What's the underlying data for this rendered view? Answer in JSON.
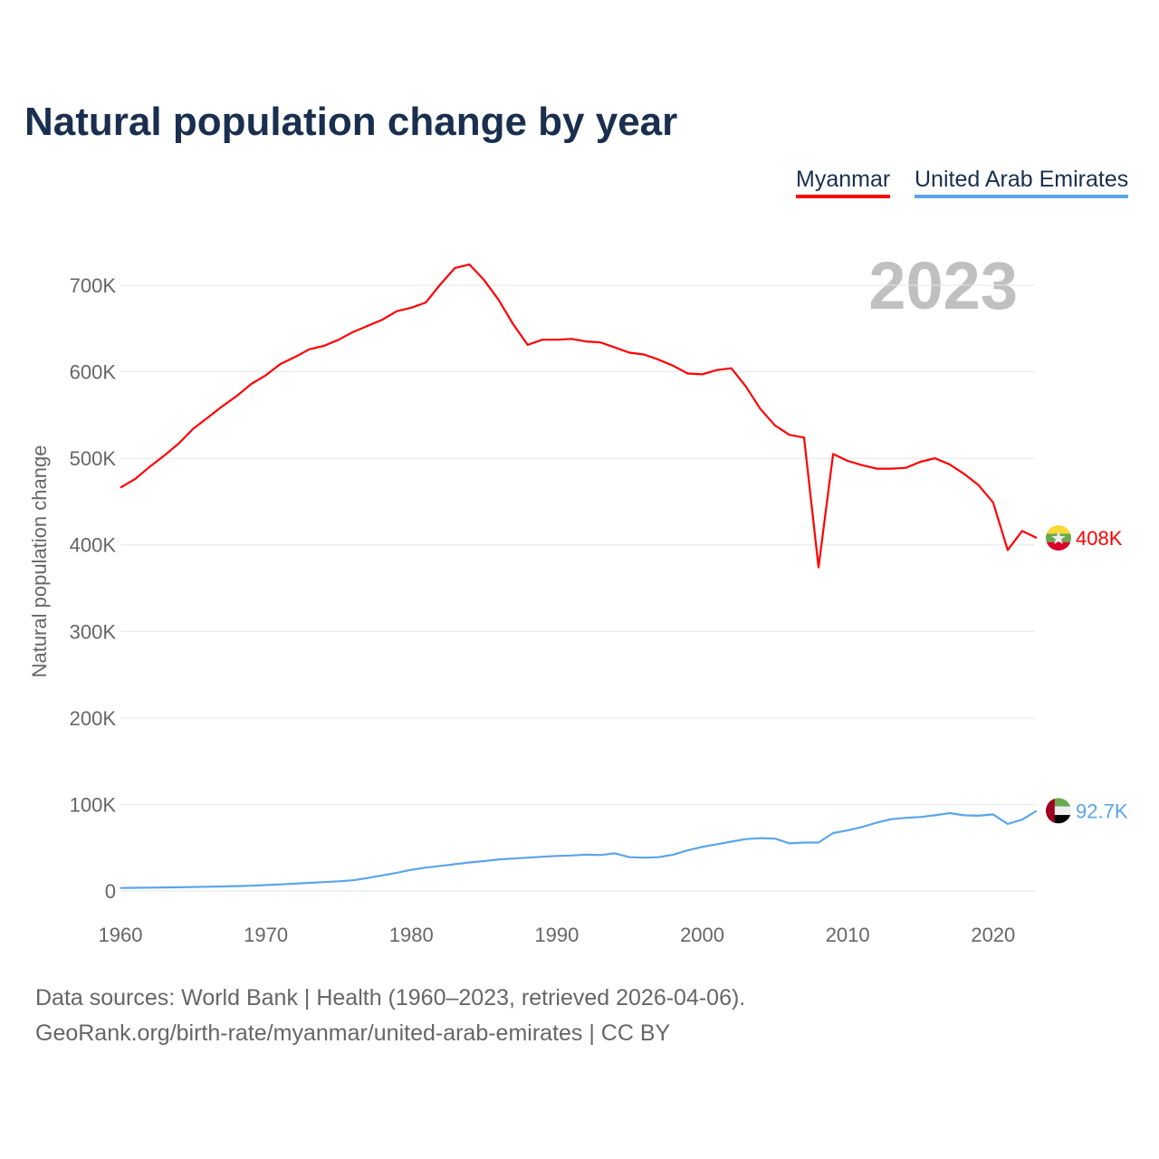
{
  "chart_data": {
    "type": "line",
    "title": "Natural population change by year",
    "xlabel": "",
    "ylabel": "Natural population change",
    "xlim": [
      1960,
      2023
    ],
    "ylim": [
      0,
      700000
    ],
    "grid": true,
    "legend_position": "top-right",
    "year_label": "2023",
    "x_ticks": [
      1960,
      1970,
      1980,
      1990,
      2000,
      2010,
      2020
    ],
    "x_tick_labels": [
      "1960",
      "1970",
      "1980",
      "1990",
      "2000",
      "2010",
      "2020"
    ],
    "y_ticks": [
      0,
      100000,
      200000,
      300000,
      400000,
      500000,
      600000,
      700000
    ],
    "y_tick_labels": [
      "0",
      "100K",
      "200K",
      "300K",
      "400K",
      "500K",
      "600K",
      "700K"
    ],
    "x": [
      1960,
      1961,
      1962,
      1963,
      1964,
      1965,
      1966,
      1967,
      1968,
      1969,
      1970,
      1971,
      1972,
      1973,
      1974,
      1975,
      1976,
      1977,
      1978,
      1979,
      1980,
      1981,
      1982,
      1983,
      1984,
      1985,
      1986,
      1987,
      1988,
      1989,
      1990,
      1991,
      1992,
      1993,
      1994,
      1995,
      1996,
      1997,
      1998,
      1999,
      2000,
      2001,
      2002,
      2003,
      2004,
      2005,
      2006,
      2007,
      2008,
      2009,
      2010,
      2011,
      2012,
      2013,
      2014,
      2015,
      2016,
      2017,
      2018,
      2019,
      2020,
      2021,
      2022,
      2023
    ],
    "series": [
      {
        "name": "Myanmar",
        "color": "#ff0000",
        "end_label": "408K",
        "values": [
          466000,
          476000,
          490000,
          503000,
          517000,
          534000,
          547000,
          560000,
          572000,
          586000,
          596000,
          609000,
          617000,
          626000,
          630000,
          637000,
          646000,
          653000,
          660000,
          670000,
          674000,
          680000,
          701000,
          720000,
          724000,
          706000,
          683000,
          655000,
          631000,
          637000,
          637000,
          638000,
          635000,
          634000,
          628000,
          622000,
          620000,
          614000,
          607000,
          598000,
          597000,
          602000,
          604000,
          583000,
          557000,
          538000,
          527000,
          524000,
          374000,
          505000,
          497000,
          492000,
          488000,
          488000,
          489000,
          496000,
          500000,
          493000,
          482000,
          469000,
          449000,
          394000,
          416000,
          408000
        ]
      },
      {
        "name": "United Arab Emirates",
        "color": "#5aa5ea",
        "end_label": "92.7K",
        "values": [
          3500,
          3700,
          3900,
          4100,
          4300,
          4600,
          4900,
          5200,
          5600,
          6100,
          6800,
          7600,
          8500,
          9400,
          10300,
          11200,
          12300,
          15000,
          18000,
          21000,
          24500,
          27000,
          29000,
          31000,
          33000,
          34500,
          36500,
          37500,
          38500,
          39500,
          40500,
          41000,
          42000,
          41500,
          43500,
          39000,
          38500,
          39000,
          42000,
          47000,
          51000,
          54000,
          57000,
          60000,
          61000,
          60500,
          55000,
          56000,
          56000,
          67000,
          70000,
          74000,
          79000,
          83000,
          84500,
          85500,
          87500,
          90000,
          87500,
          87000,
          88500,
          77500,
          82500,
          92700
        ]
      }
    ]
  },
  "footer": {
    "sources": "Data sources: World Bank | Health (1960–2023, retrieved 2026-04-06).",
    "credit": "GeoRank.org/birth-rate/myanmar/united-arab-emirates | CC BY"
  }
}
